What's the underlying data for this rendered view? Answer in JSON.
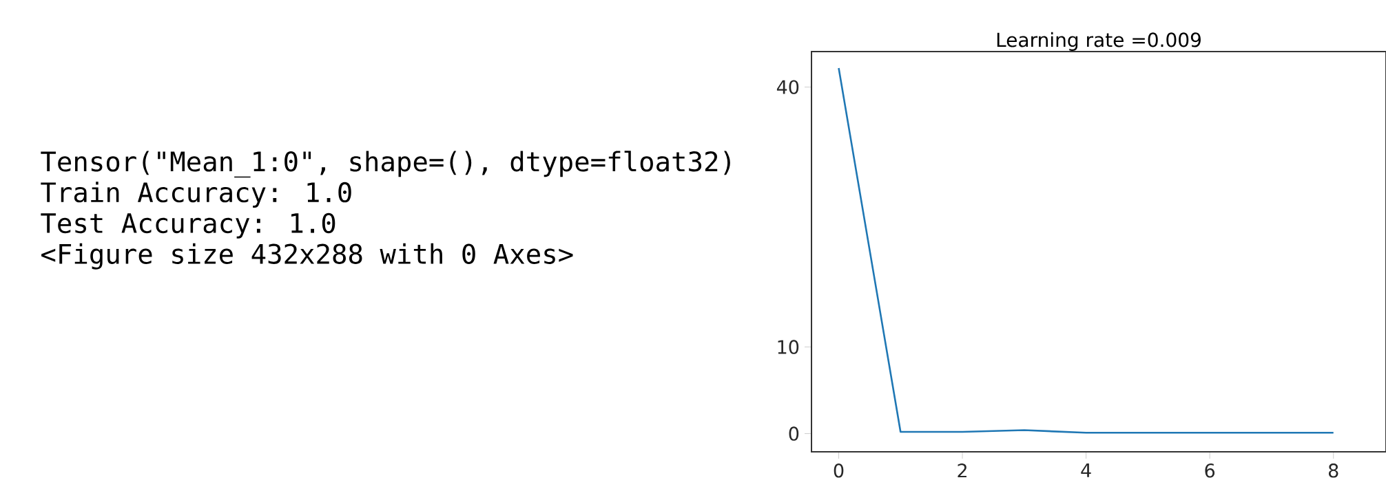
{
  "chart_data": {
    "type": "line",
    "title": "Learning rate =0.009",
    "x": [
      0,
      1,
      2,
      3,
      4,
      5,
      6,
      7,
      8
    ],
    "series": [
      {
        "color": "#1f77b4",
        "values": [
          42.2,
          0.2,
          0.2,
          0.4,
          0.1,
          0.1,
          0.1,
          0.1,
          0.1
        ]
      }
    ],
    "xlim": [
      -0.44,
      8.85
    ],
    "ylim": [
      -2.1,
      44.1
    ],
    "xticks": [
      0,
      2,
      4,
      6,
      8
    ],
    "yticks": [
      0,
      10,
      40
    ],
    "annotations": [
      "Tensor(\"Mean_1:0\", shape=(), dtype=float32)",
      "Train Accuracy: 1.0",
      "Test Accuracy: 1.0",
      "<Figure size 432x288 with 0 Axes>"
    ]
  }
}
